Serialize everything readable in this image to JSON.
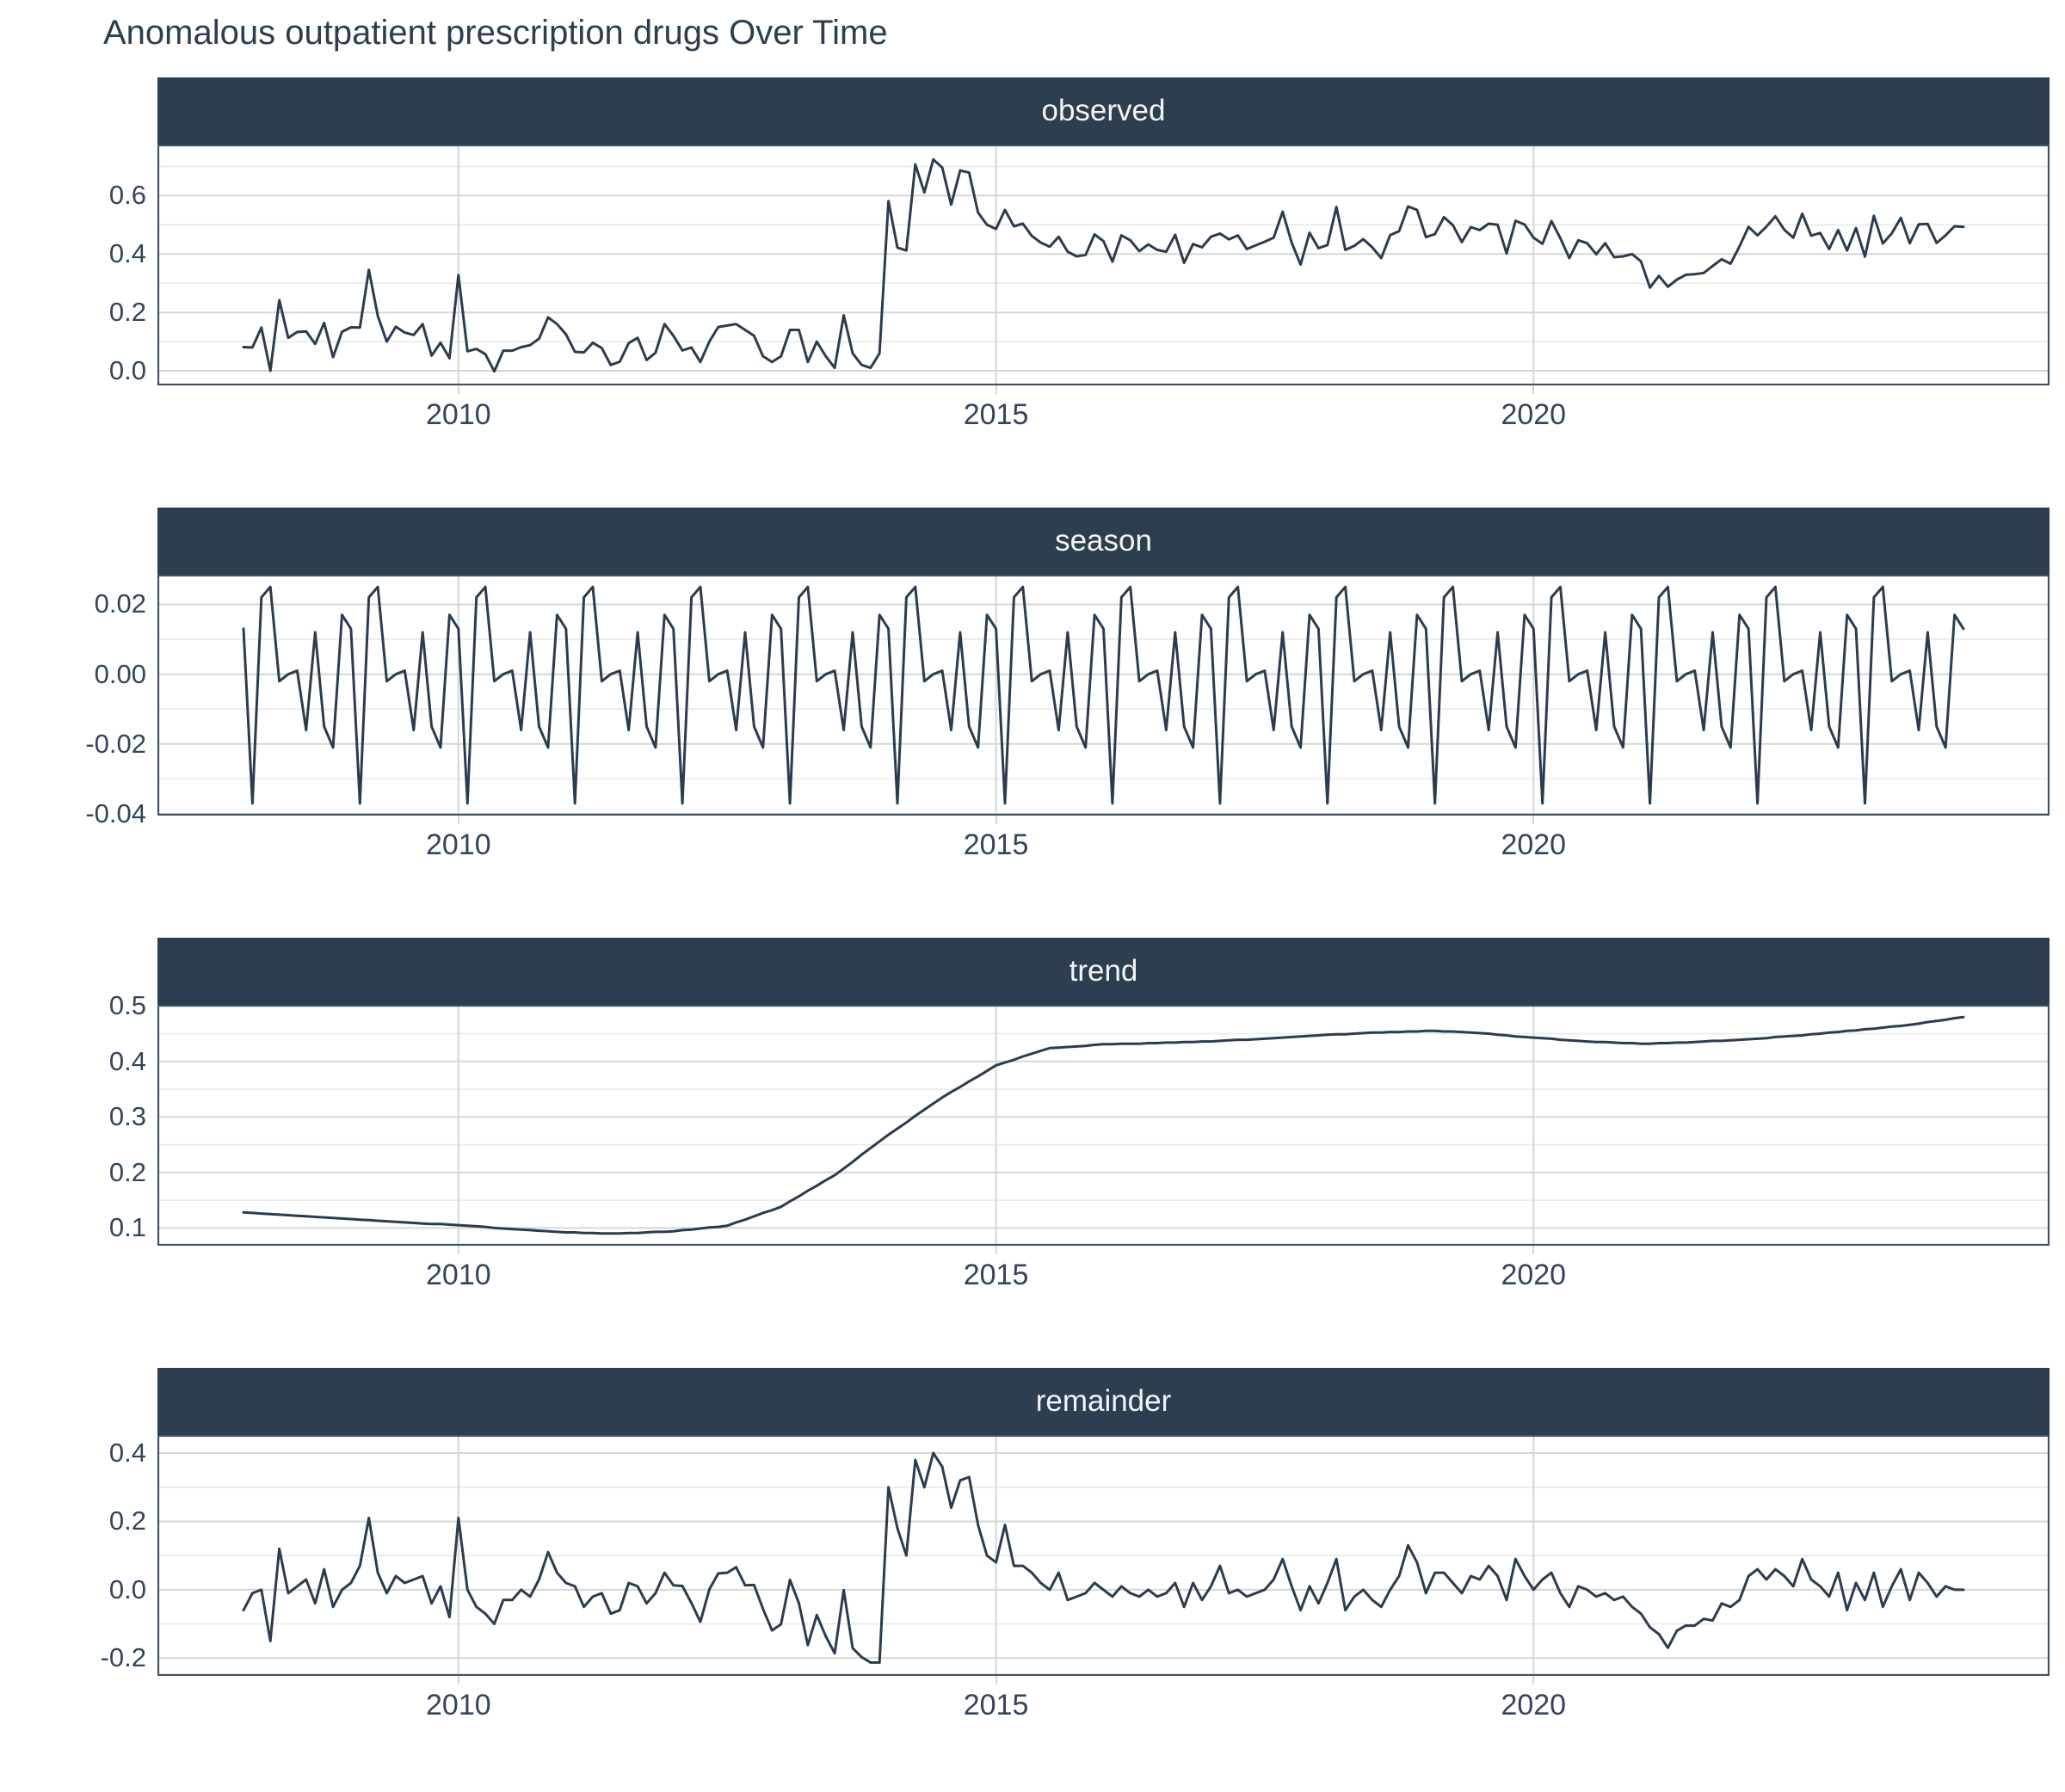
{
  "title": "Anomalous outpatient prescription drugs Over Time",
  "colors": {
    "line": "#2b3c4f",
    "strip_bg": "#2d3e50",
    "strip_text": "#f2f4f6",
    "grid_major": "#d6d6d6",
    "grid_minor": "#ebebeb",
    "panel_border": "#3f5062",
    "axis_text": "#33445c",
    "title_text": "#2c3e50"
  },
  "x_axis": {
    "range": [
      2007.2,
      2024.8
    ],
    "major_ticks": [
      2010,
      2015,
      2020
    ],
    "tick_labels": [
      "2010",
      "2015",
      "2020"
    ]
  },
  "x_monthly_decimal_years": {
    "start": 2008.0,
    "step": 0.0833333,
    "n": 193,
    "end": 2024.0
  },
  "chart_data": [
    {
      "type": "line",
      "name": "observed",
      "ylim": [
        -0.05,
        0.775
      ],
      "yticks": [
        0.0,
        0.2,
        0.4,
        0.6
      ],
      "ytick_labels": [
        "0.0",
        "0.2",
        "0.4",
        "0.6"
      ],
      "yminor": [
        0.1,
        0.3,
        0.5,
        0.7
      ],
      "values": [
        0.081,
        0.08,
        0.148,
        0.0,
        0.242,
        0.113,
        0.133,
        0.135,
        0.092,
        0.164,
        0.047,
        0.134,
        0.149,
        0.148,
        0.346,
        0.188,
        0.1,
        0.151,
        0.131,
        0.123,
        0.16,
        0.052,
        0.096,
        0.043,
        0.328,
        0.067,
        0.075,
        0.057,
        -0.002,
        0.069,
        0.069,
        0.081,
        0.088,
        0.11,
        0.183,
        0.16,
        0.125,
        0.065,
        0.063,
        0.096,
        0.078,
        0.02,
        0.031,
        0.095,
        0.113,
        0.037,
        0.062,
        0.16,
        0.12,
        0.07,
        0.08,
        0.03,
        0.1,
        0.15,
        0.155,
        0.16,
        0.14,
        0.12,
        0.05,
        0.03,
        0.05,
        0.14,
        0.14,
        0.03,
        0.1,
        0.05,
        0.01,
        0.19,
        0.06,
        0.02,
        0.01,
        0.06,
        0.581,
        0.422,
        0.412,
        0.707,
        0.611,
        0.724,
        0.696,
        0.569,
        0.686,
        0.679,
        0.542,
        0.5,
        0.486,
        0.551,
        0.495,
        0.504,
        0.462,
        0.439,
        0.425,
        0.459,
        0.408,
        0.392,
        0.397,
        0.467,
        0.444,
        0.374,
        0.464,
        0.447,
        0.41,
        0.433,
        0.414,
        0.408,
        0.466,
        0.37,
        0.434,
        0.423,
        0.459,
        0.47,
        0.45,
        0.464,
        0.417,
        0.43,
        0.442,
        0.456,
        0.545,
        0.439,
        0.364,
        0.473,
        0.42,
        0.431,
        0.561,
        0.414,
        0.428,
        0.451,
        0.423,
        0.386,
        0.465,
        0.478,
        0.563,
        0.551,
        0.458,
        0.468,
        0.526,
        0.499,
        0.441,
        0.492,
        0.482,
        0.504,
        0.5,
        0.402,
        0.514,
        0.501,
        0.456,
        0.435,
        0.513,
        0.454,
        0.386,
        0.447,
        0.437,
        0.399,
        0.437,
        0.389,
        0.392,
        0.4,
        0.375,
        0.285,
        0.325,
        0.288,
        0.312,
        0.329,
        0.331,
        0.335,
        0.359,
        0.382,
        0.367,
        0.426,
        0.493,
        0.464,
        0.494,
        0.529,
        0.483,
        0.456,
        0.538,
        0.463,
        0.472,
        0.417,
        0.482,
        0.412,
        0.489,
        0.391,
        0.531,
        0.436,
        0.471,
        0.524,
        0.437,
        0.502,
        0.503,
        0.438,
        0.464,
        0.495,
        0.493
      ]
    },
    {
      "type": "line",
      "name": "season",
      "ylim": [
        -0.0405,
        0.0285
      ],
      "yticks": [
        -0.04,
        -0.02,
        0.0,
        0.02
      ],
      "ytick_labels": [
        "-0.04",
        "-0.02",
        "0.00",
        "0.02"
      ],
      "yminor": [
        -0.03,
        -0.01,
        0.01
      ],
      "values_pattern_monthly_jan_to_dec": [
        0.013,
        -0.037,
        0.022,
        0.025,
        -0.002,
        0.0,
        0.001,
        -0.016,
        0.012,
        -0.015,
        -0.021,
        0.017
      ]
    },
    {
      "type": "line",
      "name": "trend",
      "ylim": [
        0.068,
        0.502
      ],
      "yticks": [
        0.1,
        0.2,
        0.3,
        0.4,
        0.5
      ],
      "ytick_labels": [
        "0.1",
        "0.2",
        "0.3",
        "0.4",
        "0.5"
      ],
      "yminor": [
        0.15,
        0.25,
        0.35,
        0.45
      ],
      "values": [
        0.128,
        0.127,
        0.126,
        0.125,
        0.124,
        0.123,
        0.122,
        0.121,
        0.12,
        0.119,
        0.118,
        0.117,
        0.116,
        0.115,
        0.114,
        0.113,
        0.112,
        0.111,
        0.11,
        0.109,
        0.108,
        0.107,
        0.107,
        0.106,
        0.105,
        0.104,
        0.103,
        0.102,
        0.1,
        0.099,
        0.098,
        0.097,
        0.096,
        0.095,
        0.094,
        0.093,
        0.092,
        0.092,
        0.091,
        0.091,
        0.09,
        0.09,
        0.09,
        0.091,
        0.091,
        0.092,
        0.093,
        0.093,
        0.094,
        0.096,
        0.097,
        0.099,
        0.101,
        0.102,
        0.104,
        0.11,
        0.115,
        0.121,
        0.127,
        0.132,
        0.138,
        0.148,
        0.157,
        0.167,
        0.176,
        0.186,
        0.195,
        0.207,
        0.219,
        0.232,
        0.244,
        0.256,
        0.268,
        0.279,
        0.29,
        0.302,
        0.313,
        0.324,
        0.335,
        0.345,
        0.354,
        0.364,
        0.373,
        0.383,
        0.393,
        0.398,
        0.403,
        0.409,
        0.414,
        0.419,
        0.424,
        0.425,
        0.426,
        0.427,
        0.428,
        0.43,
        0.431,
        0.431,
        0.432,
        0.432,
        0.432,
        0.433,
        0.433,
        0.434,
        0.434,
        0.435,
        0.435,
        0.436,
        0.436,
        0.437,
        0.438,
        0.439,
        0.439,
        0.44,
        0.441,
        0.442,
        0.443,
        0.444,
        0.445,
        0.446,
        0.447,
        0.448,
        0.449,
        0.449,
        0.45,
        0.451,
        0.452,
        0.452,
        0.453,
        0.453,
        0.454,
        0.454,
        0.455,
        0.455,
        0.454,
        0.454,
        0.453,
        0.452,
        0.451,
        0.45,
        0.448,
        0.447,
        0.445,
        0.444,
        0.443,
        0.442,
        0.441,
        0.439,
        0.438,
        0.437,
        0.436,
        0.435,
        0.435,
        0.434,
        0.433,
        0.433,
        0.432,
        0.432,
        0.433,
        0.433,
        0.434,
        0.434,
        0.435,
        0.436,
        0.437,
        0.437,
        0.438,
        0.439,
        0.44,
        0.441,
        0.442,
        0.444,
        0.445,
        0.446,
        0.447,
        0.449,
        0.45,
        0.452,
        0.453,
        0.455,
        0.456,
        0.458,
        0.459,
        0.461,
        0.463,
        0.464,
        0.466,
        0.468,
        0.471,
        0.473,
        0.475,
        0.478,
        0.48
      ]
    },
    {
      "type": "line",
      "name": "remainder",
      "ylim": [
        -0.252,
        0.453
      ],
      "yticks": [
        -0.2,
        0.0,
        0.2,
        0.4
      ],
      "ytick_labels": [
        "-0.2",
        "0.0",
        "0.2",
        "0.4"
      ],
      "yminor": [
        -0.1,
        0.1,
        0.3
      ],
      "values": [
        -0.06,
        -0.01,
        0.0,
        -0.15,
        0.12,
        -0.01,
        0.01,
        0.03,
        -0.04,
        0.06,
        -0.05,
        0.0,
        0.02,
        0.07,
        0.21,
        0.05,
        -0.01,
        0.04,
        0.02,
        0.03,
        0.04,
        -0.04,
        0.01,
        -0.08,
        0.21,
        0.0,
        -0.05,
        -0.07,
        -0.1,
        -0.03,
        -0.03,
        0.0,
        -0.02,
        0.03,
        0.11,
        0.05,
        0.02,
        0.01,
        -0.05,
        -0.02,
        -0.01,
        -0.07,
        -0.06,
        0.02,
        0.01,
        -0.04,
        -0.01,
        0.05,
        0.013,
        0.011,
        -0.039,
        -0.094,
        0.001,
        0.048,
        0.05,
        0.066,
        0.013,
        0.014,
        -0.056,
        -0.119,
        -0.101,
        0.029,
        -0.039,
        -0.162,
        -0.074,
        -0.136,
        -0.186,
        -0.001,
        -0.171,
        -0.197,
        -0.213,
        -0.213,
        0.3,
        0.18,
        0.1,
        0.38,
        0.3,
        0.4,
        0.36,
        0.24,
        0.32,
        0.33,
        0.19,
        0.1,
        0.08,
        0.19,
        0.07,
        0.07,
        0.05,
        0.02,
        0.0,
        0.05,
        -0.03,
        -0.02,
        -0.01,
        0.02,
        0.0,
        -0.02,
        0.01,
        -0.01,
        -0.02,
        0.0,
        -0.02,
        -0.01,
        0.02,
        -0.05,
        0.02,
        -0.03,
        0.01,
        0.07,
        -0.01,
        0.0,
        -0.02,
        -0.01,
        0.0,
        0.03,
        0.09,
        0.01,
        -0.06,
        0.01,
        -0.04,
        0.02,
        0.09,
        -0.06,
        -0.02,
        0.0,
        -0.03,
        -0.05,
        0.0,
        0.04,
        0.13,
        0.08,
        -0.01,
        0.05,
        0.05,
        0.02,
        -0.01,
        0.04,
        0.03,
        0.07,
        0.04,
        -0.03,
        0.09,
        0.04,
        0.0,
        0.03,
        0.05,
        -0.01,
        -0.05,
        0.01,
        0.0,
        -0.02,
        -0.01,
        -0.03,
        -0.02,
        -0.05,
        -0.07,
        -0.11,
        -0.13,
        -0.17,
        -0.12,
        -0.105,
        -0.105,
        -0.085,
        -0.09,
        -0.04,
        -0.05,
        -0.03,
        0.04,
        0.06,
        0.03,
        0.06,
        0.04,
        0.01,
        0.09,
        0.03,
        0.01,
        -0.02,
        0.05,
        -0.06,
        0.02,
        -0.03,
        0.05,
        -0.05,
        0.01,
        0.06,
        -0.03,
        0.05,
        0.02,
        -0.02,
        0.01,
        0.0,
        0.0
      ]
    }
  ]
}
